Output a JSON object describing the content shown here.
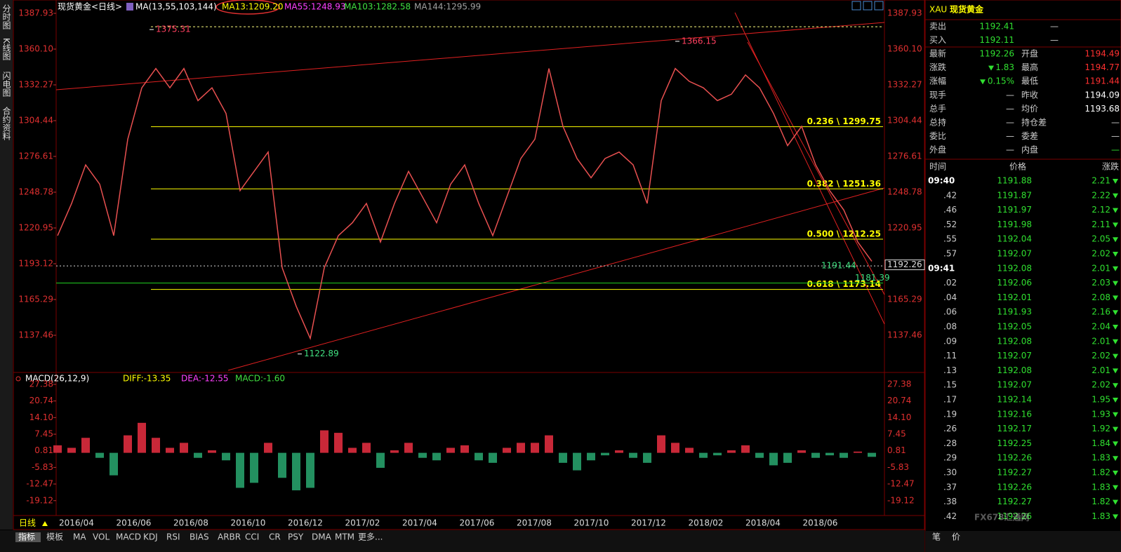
{
  "side_tabs": [
    "分时图",
    "K线图",
    "闪电图",
    "合约资料"
  ],
  "header": {
    "title": "现货黄金<日线>",
    "ma_params": "MA(13,55,103,144)",
    "ma": [
      "MA13:1209.20",
      "MA55:1248.93",
      "MA103:1282.58",
      "MA144:1295.99"
    ]
  },
  "price_chart": {
    "ylim": [
      1109.08,
      1395.57
    ],
    "yticks": [
      1387.93,
      {
        "value": 1360.1,
        "label": "1360.10"
      },
      1332.27,
      1304.44,
      1276.61,
      1248.78,
      1220.95,
      1193.12,
      1165.29,
      1137.46
    ],
    "closes": [
      1215,
      1240,
      1270,
      1255,
      1215,
      1290,
      1330,
      1345,
      1330,
      1345,
      1320,
      1330,
      1310,
      1250,
      1265,
      1280,
      1190,
      1160,
      1135,
      1190,
      1215,
      1225,
      1240,
      1210,
      1240,
      1265,
      1245,
      1225,
      1255,
      1270,
      1240,
      1215,
      1245,
      1275,
      1290,
      1345,
      1300,
      1275,
      1260,
      1275,
      1280,
      1270,
      1240,
      1320,
      1345,
      1335,
      1330,
      1320,
      1325,
      1340,
      1330,
      1310,
      1285,
      1300,
      1270,
      1250,
      1235,
      1210,
      1195
    ],
    "fib_levels": [
      {
        "value": 1299.75,
        "label": "0.236 \\ 1299.75"
      },
      {
        "value": 1251.36,
        "label": "0.382 \\ 1251.36"
      },
      {
        "value": 1212.25,
        "label": "0.500 \\ 1212.25"
      },
      {
        "value": 1173.14,
        "label": "0.618 \\ 1173.14"
      }
    ],
    "annotations": [
      {
        "value": 1375.31,
        "label": "1375.31"
      },
      {
        "value": 1366.15,
        "label": "1366.15"
      },
      {
        "value": 1122.89,
        "label": "1122.89"
      },
      {
        "value": 1191.44,
        "label": "1191.44"
      },
      {
        "value": 1181.39,
        "label": "1181.39"
      }
    ],
    "current_price": {
      "value": 1192.26,
      "label": "1192.26"
    }
  },
  "macd": {
    "header": "MACD(26,12,9)",
    "diff": "DIFF:-13.35",
    "dea": "DEA:-12.55",
    "macd": "MACD:-1.60",
    "ylim": [
      -25.08,
      30.19
    ],
    "yticks": [
      27.38,
      20.74,
      {
        "value": 14.1,
        "label": "14.10"
      },
      7.45,
      0.81,
      -5.83,
      -12.47,
      -19.12
    ],
    "histogram": [
      3,
      2,
      6,
      -2,
      -9,
      7,
      12,
      6,
      2,
      4,
      -2,
      1,
      -3,
      -14,
      -12,
      4,
      -10,
      -15,
      -14,
      9,
      8,
      2,
      4,
      -6,
      1,
      4,
      -2,
      -3,
      2,
      3,
      -3,
      -4,
      2,
      4,
      4,
      7,
      -4,
      -7,
      -3,
      -1,
      1,
      -2,
      -4,
      7,
      4,
      2,
      -2,
      -1,
      1,
      3,
      -2,
      -5,
      -4,
      1,
      -2,
      -1,
      -2,
      0.5,
      -1.6
    ]
  },
  "x_labels": [
    "2016/04",
    "2016/06",
    "2016/08",
    "2016/10",
    "2016/12",
    "2017/02",
    "2017/04",
    "2017/06",
    "2017/08",
    "2017/10",
    "2017/12",
    "2018/02",
    "2018/04",
    "2018/06"
  ],
  "period": "日线",
  "bottom_tabs": [
    "指标",
    "模板",
    "MA",
    "VOL",
    "MACD",
    "KDJ",
    "RSI",
    "BIAS",
    "ARBR",
    "CCI",
    "CR",
    "PSY",
    "DMA",
    "MTM",
    "更多..."
  ],
  "quote": {
    "symbol": "XAU",
    "name": "现货黄金",
    "bid_ask": [
      [
        "卖出",
        "1192.41",
        "—"
      ],
      [
        "买入",
        "1192.11",
        "—"
      ]
    ],
    "stats": [
      [
        "最新",
        "1192.26",
        "开盘",
        "1194.49"
      ],
      [
        "涨跌",
        "1.83",
        "最高",
        "1194.77"
      ],
      [
        "涨幅",
        "0.15%",
        "最低",
        "1191.44"
      ],
      [
        "现手",
        "—",
        "昨收",
        "1194.09"
      ],
      [
        "总手",
        "—",
        "均价",
        "1193.68"
      ],
      [
        "总持",
        "—",
        "持仓差",
        "—"
      ],
      [
        "委比",
        "—",
        "委差",
        "—"
      ],
      [
        "外盘",
        "—",
        "内盘",
        "—"
      ]
    ],
    "ticks_header": [
      "时间",
      "价格",
      "涨跌"
    ],
    "ticks": [
      [
        "09:40",
        "1191.88",
        "2.21"
      ],
      [
        ".42",
        "1191.87",
        "2.22"
      ],
      [
        ".46",
        "1191.97",
        "2.12"
      ],
      [
        ".52",
        "1191.98",
        "2.11"
      ],
      [
        ".55",
        "1192.04",
        "2.05"
      ],
      [
        ".57",
        "1192.07",
        "2.02"
      ],
      [
        "09:41",
        "1192.08",
        "2.01"
      ],
      [
        ".02",
        "1192.06",
        "2.03"
      ],
      [
        ".04",
        "1192.01",
        "2.08"
      ],
      [
        ".06",
        "1191.93",
        "2.16"
      ],
      [
        ".08",
        "1192.05",
        "2.04"
      ],
      [
        ".09",
        "1192.08",
        "2.01"
      ],
      [
        ".11",
        "1192.07",
        "2.02"
      ],
      [
        ".13",
        "1192.08",
        "2.01"
      ],
      [
        ".15",
        "1192.07",
        "2.02"
      ],
      [
        ".17",
        "1192.14",
        "1.95"
      ],
      [
        ".19",
        "1192.16",
        "1.93"
      ],
      [
        ".26",
        "1192.17",
        "1.92"
      ],
      [
        ".28",
        "1192.25",
        "1.84"
      ],
      [
        ".29",
        "1192.26",
        "1.83"
      ],
      [
        ".30",
        "1192.27",
        "1.82"
      ],
      [
        ".37",
        "1192.26",
        "1.83"
      ],
      [
        ".38",
        "1192.27",
        "1.82"
      ],
      [
        ".42",
        "1192.26",
        "1.83"
      ]
    ],
    "footer": [
      "笔",
      "价"
    ]
  },
  "watermark": "FX678汇通网"
}
